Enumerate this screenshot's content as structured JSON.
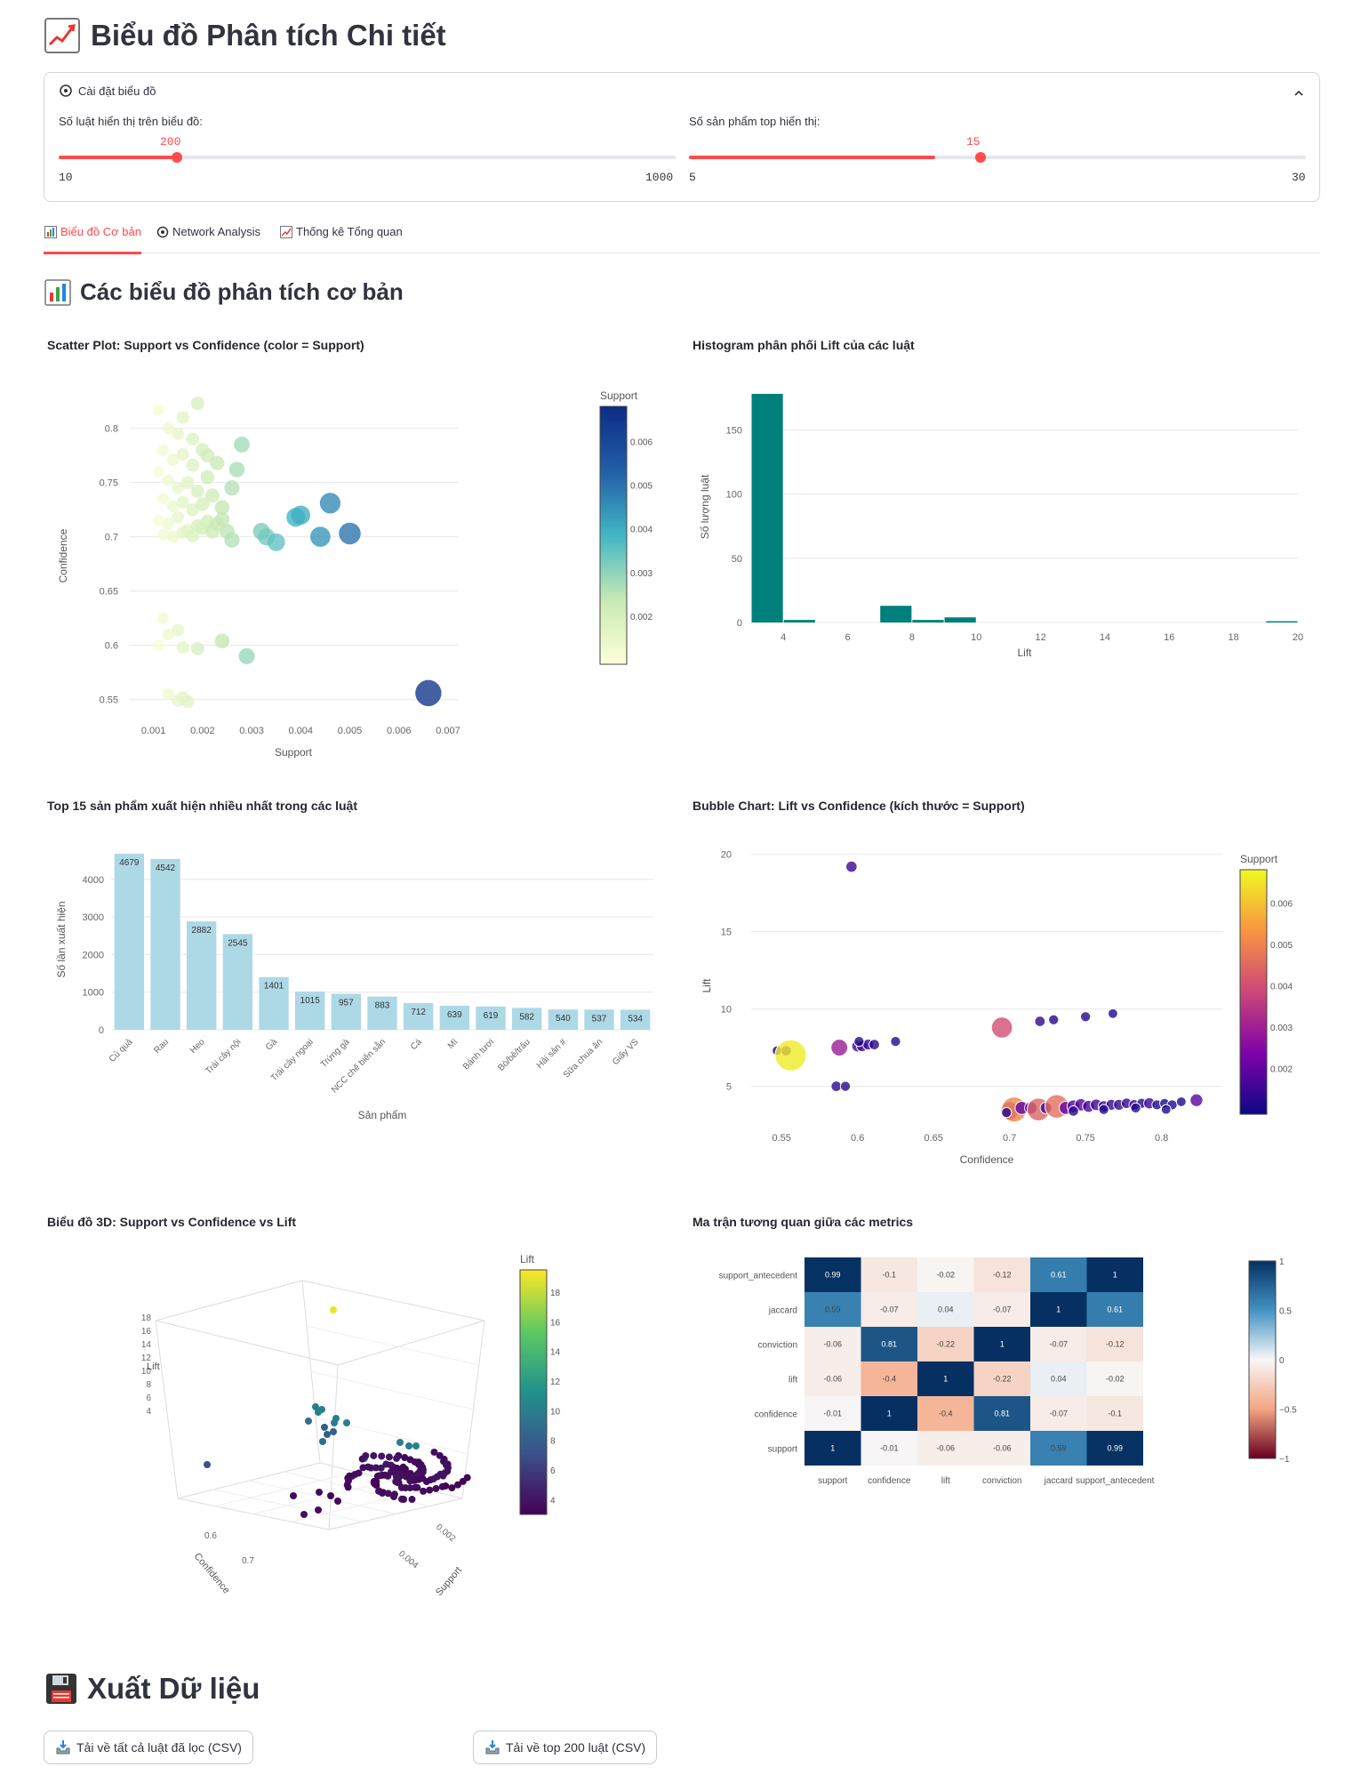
{
  "page": {
    "title": "Biểu đồ Phân tích Chi tiết",
    "title_icon": "chart-increasing-icon",
    "expander": {
      "label": "Cài đặt biểu đồ",
      "icon": "gear-icon",
      "slider_rules": {
        "label": "Số luật hiển thị trên biểu đồ:",
        "value": "200",
        "min": "10",
        "max": "1000",
        "fraction": 0.1919
      },
      "slider_products": {
        "label": "Số sản phẩm top hiển thị:",
        "value": "15",
        "min": "5",
        "max": "30",
        "fraction": 0.4
      }
    },
    "tabs": [
      {
        "label": "Biểu đồ Cơ bản",
        "icon": "bar-chart-icon",
        "active": true
      },
      {
        "label": "Network Analysis",
        "icon": "gear-icon",
        "active": false
      },
      {
        "label": "Thống kê Tổng quan",
        "icon": "chart-increasing-icon",
        "active": false
      }
    ],
    "section_title": "Các biểu đồ phân tích cơ bản",
    "export_title": "Xuất Dữ liệu",
    "export_buttons": [
      "Tải về tất cả luật đã lọc (CSV)",
      "Tải về top 200 luật (CSV)"
    ],
    "accent_color": "#ff4b4b"
  },
  "chart_data": [
    {
      "type": "scatter",
      "title": "Scatter Plot: Support vs Confidence (color = Support)",
      "xlabel": "Support",
      "ylabel": "Confidence",
      "xlim": [
        0.0005,
        0.0072
      ],
      "ylim": [
        0.535,
        0.83
      ],
      "xticks": [
        "0.001",
        "0.002",
        "0.003",
        "0.004",
        "0.005",
        "0.006",
        "0.007"
      ],
      "yticks": [
        "0.55",
        "0.6",
        "0.65",
        "0.7",
        "0.75",
        "0.8"
      ],
      "colorbar": {
        "title": "Support",
        "ticks": [
          "0.002",
          "0.003",
          "0.004",
          "0.005",
          "0.006"
        ],
        "range": [
          0.0009,
          0.0068
        ]
      },
      "points": [
        [
          0.0011,
          0.817
        ],
        [
          0.0013,
          0.8
        ],
        [
          0.0015,
          0.795
        ],
        [
          0.0016,
          0.81
        ],
        [
          0.0018,
          0.79
        ],
        [
          0.0019,
          0.823
        ],
        [
          0.0012,
          0.78
        ],
        [
          0.0014,
          0.771
        ],
        [
          0.0016,
          0.776
        ],
        [
          0.0018,
          0.766
        ],
        [
          0.002,
          0.78
        ],
        [
          0.0021,
          0.775
        ],
        [
          0.0011,
          0.76
        ],
        [
          0.0013,
          0.752
        ],
        [
          0.0015,
          0.745
        ],
        [
          0.0017,
          0.75
        ],
        [
          0.0019,
          0.742
        ],
        [
          0.0021,
          0.755
        ],
        [
          0.0023,
          0.768
        ],
        [
          0.0012,
          0.735
        ],
        [
          0.0014,
          0.728
        ],
        [
          0.0016,
          0.732
        ],
        [
          0.0018,
          0.725
        ],
        [
          0.002,
          0.73
        ],
        [
          0.0022,
          0.738
        ],
        [
          0.0024,
          0.727
        ],
        [
          0.0011,
          0.715
        ],
        [
          0.0013,
          0.712
        ],
        [
          0.0015,
          0.718
        ],
        [
          0.0017,
          0.706
        ],
        [
          0.0019,
          0.71
        ],
        [
          0.0021,
          0.714
        ],
        [
          0.0023,
          0.712
        ],
        [
          0.0012,
          0.702
        ],
        [
          0.0014,
          0.7
        ],
        [
          0.0016,
          0.704
        ],
        [
          0.0018,
          0.701
        ],
        [
          0.002,
          0.708
        ],
        [
          0.0022,
          0.705
        ],
        [
          0.0025,
          0.705
        ],
        [
          0.0026,
          0.697
        ],
        [
          0.0024,
          0.716
        ],
        [
          0.0026,
          0.745
        ],
        [
          0.0027,
          0.762
        ],
        [
          0.0028,
          0.785
        ],
        [
          0.0032,
          0.705
        ],
        [
          0.0033,
          0.7
        ],
        [
          0.0035,
          0.695
        ],
        [
          0.0039,
          0.718
        ],
        [
          0.004,
          0.72
        ],
        [
          0.0044,
          0.7
        ],
        [
          0.0046,
          0.731
        ],
        [
          0.005,
          0.703
        ],
        [
          0.0012,
          0.625
        ],
        [
          0.0013,
          0.61
        ],
        [
          0.0015,
          0.614
        ],
        [
          0.0016,
          0.598
        ],
        [
          0.0011,
          0.6
        ],
        [
          0.0019,
          0.597
        ],
        [
          0.0024,
          0.604
        ],
        [
          0.0029,
          0.59
        ],
        [
          0.0013,
          0.555
        ],
        [
          0.0015,
          0.549
        ],
        [
          0.0016,
          0.552
        ],
        [
          0.0017,
          0.548
        ],
        [
          0.0066,
          0.556
        ]
      ]
    },
    {
      "type": "bar",
      "title": "Histogram phân phối Lift của các luật",
      "xlabel": "Lift",
      "ylabel": "Số lượng luật",
      "xlim": [
        3,
        20
      ],
      "ylim": [
        0,
        180
      ],
      "xticks": [
        "4",
        "6",
        "8",
        "10",
        "12",
        "14",
        "16",
        "18",
        "20"
      ],
      "yticks": [
        "0",
        "50",
        "100",
        "150"
      ],
      "bins": [
        {
          "x0": 3.0,
          "x1": 4.0,
          "count": 178
        },
        {
          "x0": 4.0,
          "x1": 5.0,
          "count": 2
        },
        {
          "x0": 7.0,
          "x1": 8.0,
          "count": 13
        },
        {
          "x0": 8.0,
          "x1": 9.0,
          "count": 2
        },
        {
          "x0": 9.0,
          "x1": 10.0,
          "count": 4
        },
        {
          "x0": 19.0,
          "x1": 20.0,
          "count": 1
        }
      ]
    },
    {
      "type": "bar",
      "title": "Top 15 sản phẩm xuất hiện nhiều nhất trong các luật",
      "xlabel": "Sản phẩm",
      "ylabel": "Số lần xuất hiện",
      "ylim": [
        0,
        4800
      ],
      "yticks": [
        "0",
        "1000",
        "2000",
        "3000",
        "4000"
      ],
      "categories": [
        "Củ quả",
        "Rau",
        "Heo",
        "Trái cây nội",
        "Gà",
        "Trái cây ngoại",
        "Trứng gà",
        "NCC chế biến sẵn",
        "Cá",
        "Mì",
        "Bánh tươi",
        "Bò/bê/trâu",
        "Hải sản #",
        "Sữa chua ăn",
        "Giấy VS"
      ],
      "values": [
        4679,
        4542,
        2882,
        2545,
        1401,
        1015,
        957,
        883,
        712,
        639,
        619,
        582,
        540,
        537,
        534
      ]
    },
    {
      "type": "scatter",
      "title": "Bubble Chart: Lift vs Confidence (kích thước = Support)",
      "xlabel": "Confidence",
      "ylabel": "Lift",
      "xlim": [
        0.53,
        0.84
      ],
      "ylim": [
        2.5,
        20.5
      ],
      "xticks": [
        "0.55",
        "0.6",
        "0.65",
        "0.7",
        "0.75",
        "0.8"
      ],
      "yticks": [
        "5",
        "10",
        "15",
        "20"
      ],
      "colorbar": {
        "title": "Support",
        "ticks": [
          "0.002",
          "0.003",
          "0.004",
          "0.005",
          "0.006"
        ],
        "range": [
          0.0009,
          0.0068
        ]
      },
      "points": [
        [
          0.596,
          19.2,
          0.0015
        ],
        [
          0.547,
          7.3,
          0.0011
        ],
        [
          0.553,
          7.3,
          0.0013
        ],
        [
          0.556,
          7.0,
          0.0066
        ],
        [
          0.588,
          7.5,
          0.0029
        ],
        [
          0.6,
          7.6,
          0.0016
        ],
        [
          0.603,
          7.6,
          0.0015
        ],
        [
          0.607,
          7.7,
          0.0014
        ],
        [
          0.611,
          7.7,
          0.0013
        ],
        [
          0.625,
          7.9,
          0.0012
        ],
        [
          0.601,
          7.9,
          0.0012
        ],
        [
          0.586,
          5.0,
          0.0013
        ],
        [
          0.592,
          5.0,
          0.0012
        ],
        [
          0.695,
          8.8,
          0.004
        ],
        [
          0.72,
          9.2,
          0.0013
        ],
        [
          0.729,
          9.3,
          0.0012
        ],
        [
          0.75,
          9.5,
          0.0012
        ],
        [
          0.768,
          9.7,
          0.0011
        ],
        [
          0.7,
          3.4,
          0.0033
        ],
        [
          0.703,
          3.5,
          0.005
        ],
        [
          0.708,
          3.6,
          0.002
        ],
        [
          0.714,
          3.6,
          0.0018
        ],
        [
          0.719,
          3.5,
          0.0044
        ],
        [
          0.724,
          3.6,
          0.0016
        ],
        [
          0.731,
          3.7,
          0.0046
        ],
        [
          0.737,
          3.6,
          0.002
        ],
        [
          0.742,
          3.7,
          0.0019
        ],
        [
          0.747,
          3.8,
          0.0018
        ],
        [
          0.752,
          3.7,
          0.0017
        ],
        [
          0.757,
          3.8,
          0.0016
        ],
        [
          0.762,
          3.7,
          0.0015
        ],
        [
          0.767,
          3.8,
          0.0014
        ],
        [
          0.772,
          3.8,
          0.0014
        ],
        [
          0.777,
          3.9,
          0.0013
        ],
        [
          0.782,
          3.8,
          0.0013
        ],
        [
          0.787,
          3.9,
          0.0012
        ],
        [
          0.792,
          3.9,
          0.0015
        ],
        [
          0.797,
          3.8,
          0.0012
        ],
        [
          0.802,
          3.9,
          0.0011
        ],
        [
          0.807,
          3.8,
          0.0012
        ],
        [
          0.813,
          4.0,
          0.0011
        ],
        [
          0.823,
          4.1,
          0.0019
        ],
        [
          0.698,
          3.3,
          0.0012
        ],
        [
          0.742,
          3.4,
          0.0013
        ],
        [
          0.762,
          3.5,
          0.0012
        ],
        [
          0.783,
          3.6,
          0.0012
        ],
        [
          0.803,
          3.5,
          0.0011
        ]
      ]
    },
    {
      "type": "scatter",
      "title": "Biểu đồ 3D: Support vs Confidence vs Lift",
      "axes": {
        "x": "Support",
        "y": "Confidence",
        "z": "Lift"
      },
      "z_ticks": [
        "4",
        "6",
        "8",
        "10",
        "12",
        "14",
        "16",
        "18"
      ],
      "y_ticks": [
        "0.6",
        "0.7"
      ],
      "x_ticks": [
        "0.002",
        "0.004"
      ],
      "colorbar": {
        "title": "Lift",
        "ticks": [
          "4",
          "6",
          "8",
          "10",
          "12",
          "14",
          "16",
          "18"
        ],
        "range": [
          3.0,
          19.5
        ]
      }
    },
    {
      "type": "heatmap",
      "title": "Ma trận tương quan giữa các metrics",
      "columns": [
        "support",
        "confidence",
        "lift",
        "conviction",
        "jaccard",
        "support_antecedent"
      ],
      "rows": [
        "support_antecedent",
        "jaccard",
        "conviction",
        "lift",
        "confidence",
        "support"
      ],
      "values": [
        [
          0.99,
          -0.1,
          -0.02,
          -0.12,
          0.61,
          1
        ],
        [
          0.59,
          -0.07,
          0.04,
          -0.07,
          1,
          0.61
        ],
        [
          -0.06,
          0.81,
          -0.22,
          1,
          -0.07,
          -0.12
        ],
        [
          -0.06,
          -0.4,
          1,
          -0.22,
          0.04,
          -0.02
        ],
        [
          -0.01,
          1,
          -0.4,
          0.81,
          -0.07,
          -0.1
        ],
        [
          1,
          -0.01,
          -0.06,
          -0.06,
          0.59,
          0.99
        ]
      ],
      "colorbar_ticks": [
        "1",
        "0.5",
        "0",
        "−0.5",
        "−1"
      ]
    }
  ]
}
